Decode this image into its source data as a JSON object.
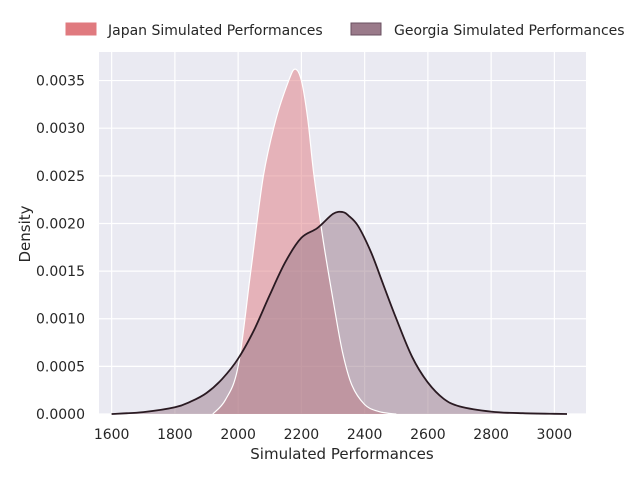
{
  "chart_data": {
    "type": "area",
    "title": "",
    "xlabel": "Simulated Performances",
    "ylabel": "Density",
    "xlim": [
      1560,
      3100
    ],
    "ylim": [
      0,
      0.0038
    ],
    "xticks": [
      1600,
      1800,
      2000,
      2200,
      2400,
      2600,
      2800,
      3000
    ],
    "xtick_labels": [
      "1600",
      "1800",
      "2000",
      "2200",
      "2400",
      "2600",
      "2800",
      "3000"
    ],
    "yticks": [
      0,
      0.0005,
      0.001,
      0.0015,
      0.002,
      0.0025,
      0.003,
      0.0035
    ],
    "ytick_labels": [
      "0.0000",
      "0.0005",
      "0.0010",
      "0.0015",
      "0.0020",
      "0.0025",
      "0.0030",
      "0.0035"
    ],
    "grid": true,
    "legend_position": "top",
    "series": [
      {
        "name": "Japan Simulated Performances",
        "fill": "#e07a7f",
        "line": "#ffffff",
        "x": [
          1920,
          1960,
          2000,
          2040,
          2080,
          2120,
          2160,
          2180,
          2200,
          2220,
          2240,
          2270,
          2300,
          2330,
          2360,
          2400,
          2440,
          2480,
          2500
        ],
        "y": [
          0.0,
          0.00015,
          0.0005,
          0.0015,
          0.0025,
          0.0031,
          0.0035,
          0.00362,
          0.0035,
          0.0031,
          0.0025,
          0.0018,
          0.0012,
          0.00065,
          0.0003,
          0.0001,
          3e-05,
          5e-06,
          0.0
        ]
      },
      {
        "name": "Georgia Simulated Performances",
        "fill": "#9a7a8a",
        "line": "#2a1a22",
        "x": [
          1600,
          1700,
          1800,
          1850,
          1900,
          1950,
          2000,
          2050,
          2100,
          2150,
          2200,
          2250,
          2300,
          2330,
          2350,
          2380,
          2420,
          2460,
          2500,
          2550,
          2600,
          2650,
          2700,
          2800,
          2900,
          3000,
          3040
        ],
        "y": [
          0.0,
          2e-05,
          7e-05,
          0.00013,
          0.00022,
          0.00037,
          0.00058,
          0.00088,
          0.00125,
          0.0016,
          0.00185,
          0.00195,
          0.0021,
          0.00212,
          0.00208,
          0.00197,
          0.0017,
          0.00135,
          0.001,
          0.0006,
          0.00033,
          0.00016,
          8e-05,
          2.5e-05,
          8e-06,
          2e-06,
          0.0
        ]
      }
    ]
  }
}
